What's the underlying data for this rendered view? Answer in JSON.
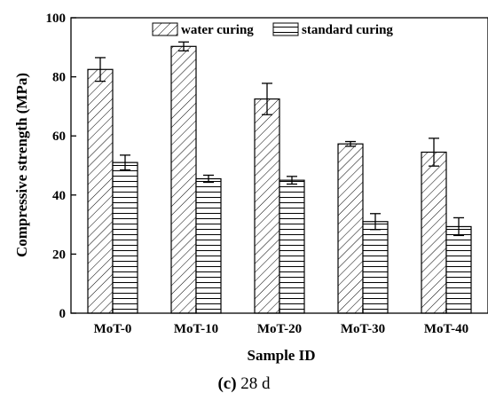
{
  "chart_data": {
    "type": "bar",
    "categories": [
      "MoT-0",
      "MoT-10",
      "MoT-20",
      "MoT-30",
      "MoT-40"
    ],
    "series": [
      {
        "name": "water curing",
        "pattern": "diagonal-hatch",
        "values": [
          82.5,
          90.3,
          72.5,
          57.3,
          54.5
        ],
        "errors": [
          4.0,
          1.5,
          5.3,
          0.8,
          4.7
        ]
      },
      {
        "name": "standard curing",
        "pattern": "horizontal-lines",
        "values": [
          51.0,
          45.5,
          45.0,
          31.0,
          29.3
        ],
        "errors": [
          2.5,
          1.2,
          1.3,
          2.7,
          3.0
        ]
      }
    ],
    "xlabel": "Sample ID",
    "ylabel": "Compressive strength (MPa)",
    "ylim": [
      0,
      100
    ],
    "yticks": [
      0,
      20,
      40,
      60,
      80,
      100
    ],
    "legend_position": "top",
    "grid": false
  },
  "caption": {
    "letter": "(c)",
    "text": " 28 d"
  }
}
